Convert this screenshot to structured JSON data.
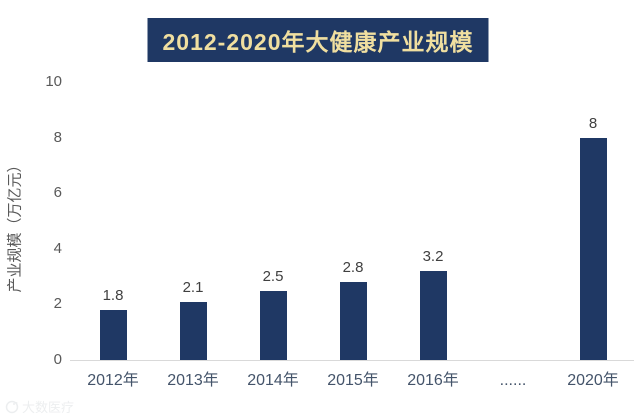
{
  "title": "2012-2020年大健康产业规模",
  "watermark": {
    "text": "大数医疗"
  },
  "colors": {
    "banner_bg": "#1F3864",
    "banner_text": "#F0DFA0",
    "bar": "#1F3864",
    "axis_text": "#595959",
    "x_label": "#44546A",
    "value_label": "#404040",
    "baseline": "#D9D9D9"
  },
  "chart_data": {
    "type": "bar",
    "title": "2012-2020年大健康产业规模",
    "categories": [
      "2012年",
      "2013年",
      "2014年",
      "2015年",
      "2016年",
      "......",
      "2020年"
    ],
    "values": [
      1.8,
      2.1,
      2.5,
      2.8,
      3.2,
      null,
      8
    ],
    "value_labels": [
      "1.8",
      "2.1",
      "2.5",
      "2.8",
      "3.2",
      "",
      "8"
    ],
    "xlabel": "",
    "ylabel": "产业规模（万亿元）",
    "yticks": [
      0,
      2,
      4,
      6,
      8,
      10
    ],
    "ylim": [
      0,
      10
    ],
    "grid": false,
    "legend": "none",
    "bar_color": "#1F3864"
  }
}
